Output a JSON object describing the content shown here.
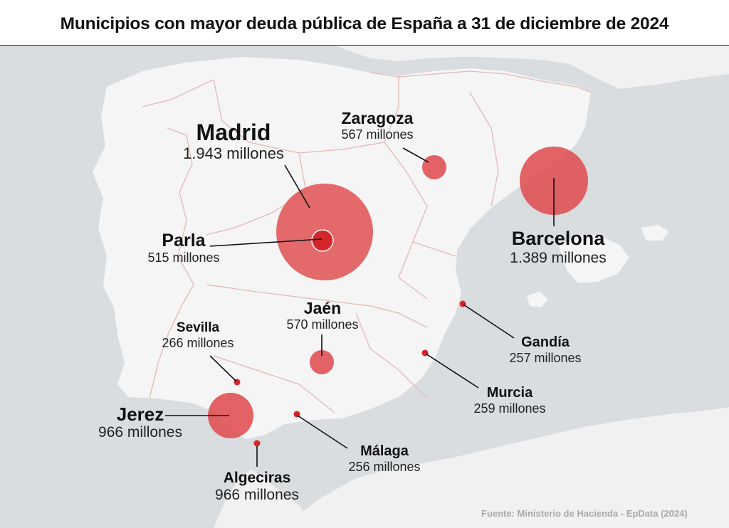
{
  "title": "Municipios con mayor deuda pública de España a 31 de diciembre de 2024",
  "source": "Fuente: Ministerio de Hacienda - EpData (2024)",
  "colors": {
    "sea": "#d9dde0",
    "land": "#f5f5f5",
    "foreign_land": "#f1f1f1",
    "border": "#e6b7b7",
    "bubble": "#e05558",
    "bubble_dark": "#d4262a",
    "leader": "#111111"
  },
  "municipios": [
    {
      "id": "madrid",
      "name": "Madrid",
      "value": "1.943 millones",
      "debt_millions": 1943
    },
    {
      "id": "barcelona",
      "name": "Barcelona",
      "value": "1.389 millones",
      "debt_millions": 1389
    },
    {
      "id": "jerez",
      "name": "Jerez",
      "value": "966 millones",
      "debt_millions": 966
    },
    {
      "id": "algeciras",
      "name": "Algeciras",
      "value": "966 millones",
      "debt_millions": 966
    },
    {
      "id": "jaen",
      "name": "Jaén",
      "value": "570 millones",
      "debt_millions": 570
    },
    {
      "id": "zaragoza",
      "name": "Zaragoza",
      "value": "567 millones",
      "debt_millions": 567
    },
    {
      "id": "parla",
      "name": "Parla",
      "value": "515 millones",
      "debt_millions": 515
    },
    {
      "id": "sevilla",
      "name": "Sevilla",
      "value": "266 millones",
      "debt_millions": 266
    },
    {
      "id": "murcia",
      "name": "Murcia",
      "value": "259 millones",
      "debt_millions": 259
    },
    {
      "id": "gandia",
      "name": "Gandía",
      "value": "257 millones",
      "debt_millions": 257
    },
    {
      "id": "malaga",
      "name": "Málaga",
      "value": "256 millones",
      "debt_millions": 256
    }
  ]
}
